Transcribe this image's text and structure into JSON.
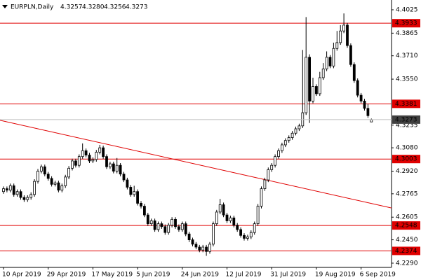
{
  "chart_data": {
    "type": "candlestick",
    "header": {
      "symbol": "EURPLN,Daily",
      "ohlc": [
        "4.3257",
        "4.3280",
        "4.3256",
        "4.3273"
      ]
    },
    "categories": [
      "10 Apr 2019",
      null,
      null,
      null,
      null,
      null,
      null,
      null,
      null,
      null,
      null,
      null,
      null,
      "29 Apr 2019",
      null,
      null,
      null,
      null,
      null,
      null,
      null,
      null,
      null,
      null,
      null,
      null,
      "17 May 2019",
      null,
      null,
      null,
      null,
      null,
      null,
      null,
      null,
      null,
      null,
      null,
      null,
      "5 Jun 2019",
      null,
      null,
      null,
      null,
      null,
      null,
      null,
      null,
      null,
      null,
      null,
      null,
      "24 Jun 2019",
      null,
      null,
      null,
      null,
      null,
      null,
      null,
      null,
      null,
      null,
      null,
      null,
      "12 Jul 2019",
      null,
      null,
      null,
      null,
      null,
      null,
      null,
      null,
      null,
      null,
      null,
      null,
      "31 Jul 2019",
      null,
      null,
      null,
      null,
      null,
      null,
      null,
      null,
      null,
      null,
      null,
      null,
      "19 Aug 2019",
      null,
      null,
      null,
      null,
      null,
      null,
      null,
      null,
      null,
      null,
      null,
      null,
      "6 Sep 2019",
      null,
      null,
      null
    ],
    "ohlc": [
      [
        4.278,
        4.2815,
        4.2765,
        4.28
      ],
      [
        4.28,
        4.2815,
        4.2775,
        4.279
      ],
      [
        4.279,
        4.2835,
        4.2775,
        4.282
      ],
      [
        4.282,
        4.2835,
        4.2745,
        4.276
      ],
      [
        4.276,
        4.2795,
        4.2745,
        4.278
      ],
      [
        4.278,
        4.2795,
        4.2725,
        4.274
      ],
      [
        4.274,
        4.2755,
        4.271,
        4.2725
      ],
      [
        4.2725,
        4.2755,
        4.271,
        4.274
      ],
      [
        4.274,
        4.2775,
        4.2725,
        4.276
      ],
      [
        4.276,
        4.2865,
        4.2745,
        4.285
      ],
      [
        4.285,
        4.2935,
        4.2835,
        4.292
      ],
      [
        4.292,
        4.2965,
        4.2905,
        4.295
      ],
      [
        4.295,
        4.2965,
        4.2885,
        4.29
      ],
      [
        4.29,
        4.2915,
        4.2855,
        4.287
      ],
      [
        4.287,
        4.2885,
        4.2815,
        4.283
      ],
      [
        4.283,
        4.2855,
        4.2815,
        4.284
      ],
      [
        4.284,
        4.2855,
        4.2775,
        4.279
      ],
      [
        4.279,
        4.2835,
        4.2775,
        4.282
      ],
      [
        4.282,
        4.2895,
        4.2805,
        4.288
      ],
      [
        4.288,
        4.2955,
        4.2865,
        4.294
      ],
      [
        4.294,
        4.3005,
        4.2925,
        4.299
      ],
      [
        4.299,
        4.3005,
        4.2945,
        4.296
      ],
      [
        4.296,
        4.3035,
        4.2945,
        4.302
      ],
      [
        4.302,
        4.311,
        4.3005,
        4.306
      ],
      [
        4.306,
        4.3075,
        4.3015,
        4.303
      ],
      [
        4.303,
        4.3045,
        4.2975,
        4.299
      ],
      [
        4.299,
        4.3015,
        4.2975,
        4.3
      ],
      [
        4.3,
        4.3065,
        4.2985,
        4.305
      ],
      [
        4.305,
        4.31,
        4.3035,
        4.308
      ],
      [
        4.308,
        4.3095,
        4.3005,
        4.302
      ],
      [
        4.302,
        4.3035,
        4.2935,
        4.295
      ],
      [
        4.295,
        4.2985,
        4.2935,
        4.297
      ],
      [
        4.297,
        4.2985,
        4.2905,
        4.292
      ],
      [
        4.292,
        4.301,
        4.2905,
        4.296
      ],
      [
        4.296,
        4.2975,
        4.2885,
        4.29
      ],
      [
        4.29,
        4.2915,
        4.2845,
        4.286
      ],
      [
        4.286,
        4.2875,
        4.2795,
        4.281
      ],
      [
        4.281,
        4.2825,
        4.2745,
        4.276
      ],
      [
        4.276,
        4.282,
        4.2745,
        4.278
      ],
      [
        4.278,
        4.2795,
        4.2685,
        4.27
      ],
      [
        4.27,
        4.2715,
        4.2665,
        4.268
      ],
      [
        4.268,
        4.2695,
        4.2605,
        4.262
      ],
      [
        4.262,
        4.2635,
        4.2545,
        4.256
      ],
      [
        4.256,
        4.2595,
        4.2545,
        4.258
      ],
      [
        4.258,
        4.2595,
        4.2505,
        4.252
      ],
      [
        4.252,
        4.2575,
        4.2505,
        4.256
      ],
      [
        4.256,
        4.2575,
        4.2525,
        4.254
      ],
      [
        4.254,
        4.2555,
        4.2485,
        4.25
      ],
      [
        4.25,
        4.2565,
        4.2485,
        4.255
      ],
      [
        4.255,
        4.2605,
        4.2535,
        4.259
      ],
      [
        4.259,
        4.2605,
        4.2525,
        4.254
      ],
      [
        4.254,
        4.2555,
        4.2505,
        4.252
      ],
      [
        4.252,
        4.2575,
        4.2505,
        4.256
      ],
      [
        4.256,
        4.2575,
        4.2475,
        4.249
      ],
      [
        4.249,
        4.2505,
        4.2435,
        4.245
      ],
      [
        4.245,
        4.2465,
        4.2405,
        4.242
      ],
      [
        4.242,
        4.2435,
        4.2385,
        4.24
      ],
      [
        4.24,
        4.2415,
        4.2365,
        4.238
      ],
      [
        4.238,
        4.2415,
        4.2365,
        4.24
      ],
      [
        4.24,
        4.2415,
        4.234,
        4.237
      ],
      [
        4.237,
        4.2435,
        4.2355,
        4.242
      ],
      [
        4.242,
        4.2575,
        4.2405,
        4.256
      ],
      [
        4.256,
        4.2655,
        4.2545,
        4.264
      ],
      [
        4.264,
        4.273,
        4.2625,
        4.269
      ],
      [
        4.269,
        4.2705,
        4.2605,
        4.262
      ],
      [
        4.262,
        4.2635,
        4.2565,
        4.258
      ],
      [
        4.258,
        4.2615,
        4.2565,
        4.26
      ],
      [
        4.26,
        4.2615,
        4.2535,
        4.255
      ],
      [
        4.255,
        4.2565,
        4.2505,
        4.252
      ],
      [
        4.252,
        4.2535,
        4.2465,
        4.248
      ],
      [
        4.248,
        4.2495,
        4.2445,
        4.246
      ],
      [
        4.246,
        4.2485,
        4.2445,
        4.247
      ],
      [
        4.247,
        4.2515,
        4.2455,
        4.25
      ],
      [
        4.25,
        4.2575,
        4.2485,
        4.256
      ],
      [
        4.256,
        4.2695,
        4.2545,
        4.268
      ],
      [
        4.268,
        4.2815,
        4.2665,
        4.28
      ],
      [
        4.28,
        4.2875,
        4.2785,
        4.286
      ],
      [
        4.286,
        4.2945,
        4.2845,
        4.293
      ],
      [
        4.293,
        4.2975,
        4.2915,
        4.296
      ],
      [
        4.296,
        4.3035,
        4.2945,
        4.302
      ],
      [
        4.302,
        4.3075,
        4.3005,
        4.306
      ],
      [
        4.306,
        4.3115,
        4.3045,
        4.31
      ],
      [
        4.31,
        4.3145,
        4.3085,
        4.313
      ],
      [
        4.313,
        4.3165,
        4.3115,
        4.315
      ],
      [
        4.315,
        4.3195,
        4.3135,
        4.318
      ],
      [
        4.318,
        4.3225,
        4.3165,
        4.321
      ],
      [
        4.321,
        4.3245,
        4.3195,
        4.323
      ],
      [
        4.323,
        4.375,
        4.3215,
        4.332
      ],
      [
        4.332,
        4.3975,
        4.3305,
        4.37
      ],
      [
        4.37,
        4.372,
        4.325,
        4.34
      ],
      [
        4.34,
        4.356,
        4.3385,
        4.35
      ],
      [
        4.35,
        4.3515,
        4.3435,
        4.345
      ],
      [
        4.345,
        4.36,
        4.3435,
        4.356
      ],
      [
        4.356,
        4.366,
        4.3545,
        4.362
      ],
      [
        4.362,
        4.374,
        4.3605,
        4.37
      ],
      [
        4.37,
        4.3715,
        4.3625,
        4.364
      ],
      [
        4.364,
        4.38,
        4.3625,
        4.376
      ],
      [
        4.376,
        4.388,
        4.3745,
        4.38
      ],
      [
        4.38,
        4.392,
        4.3785,
        4.388
      ],
      [
        4.388,
        4.4,
        4.3865,
        4.392
      ],
      [
        4.392,
        4.3935,
        4.3765,
        4.378
      ],
      [
        4.378,
        4.3795,
        4.3635,
        4.365
      ],
      [
        4.365,
        4.3665,
        4.3525,
        4.354
      ],
      [
        4.354,
        4.3555,
        4.3425,
        4.344
      ],
      [
        4.344,
        4.3455,
        4.3385,
        4.34
      ],
      [
        4.34,
        4.3415,
        4.3335,
        4.335
      ],
      [
        4.335,
        4.338,
        4.3285,
        4.33
      ],
      [
        4.3257,
        4.328,
        4.3256,
        4.3273
      ]
    ],
    "ylim": [
      4.2261,
      4.4092
    ],
    "yticks": [
      4.4025,
      4.3865,
      {
        "value": 4.371,
        "label": "4.3710"
      },
      {
        "value": 4.355,
        "label": "4.3550"
      },
      4.3235,
      {
        "value": 4.308,
        "label": "4.3080"
      },
      {
        "value": 4.292,
        "label": "4.2920"
      },
      4.2765,
      {
        "value": 4.2605,
        "label": "4.2605"
      },
      {
        "value": 4.245,
        "label": "4.2450"
      },
      {
        "value": 4.229,
        "label": "4.2290"
      }
    ],
    "levels": [
      4.3933,
      4.3381,
      4.3003,
      4.2548,
      4.2374
    ],
    "level_color": "#e00000",
    "trendline": [
      4.3268,
      4.2668
    ],
    "grid": false
  }
}
